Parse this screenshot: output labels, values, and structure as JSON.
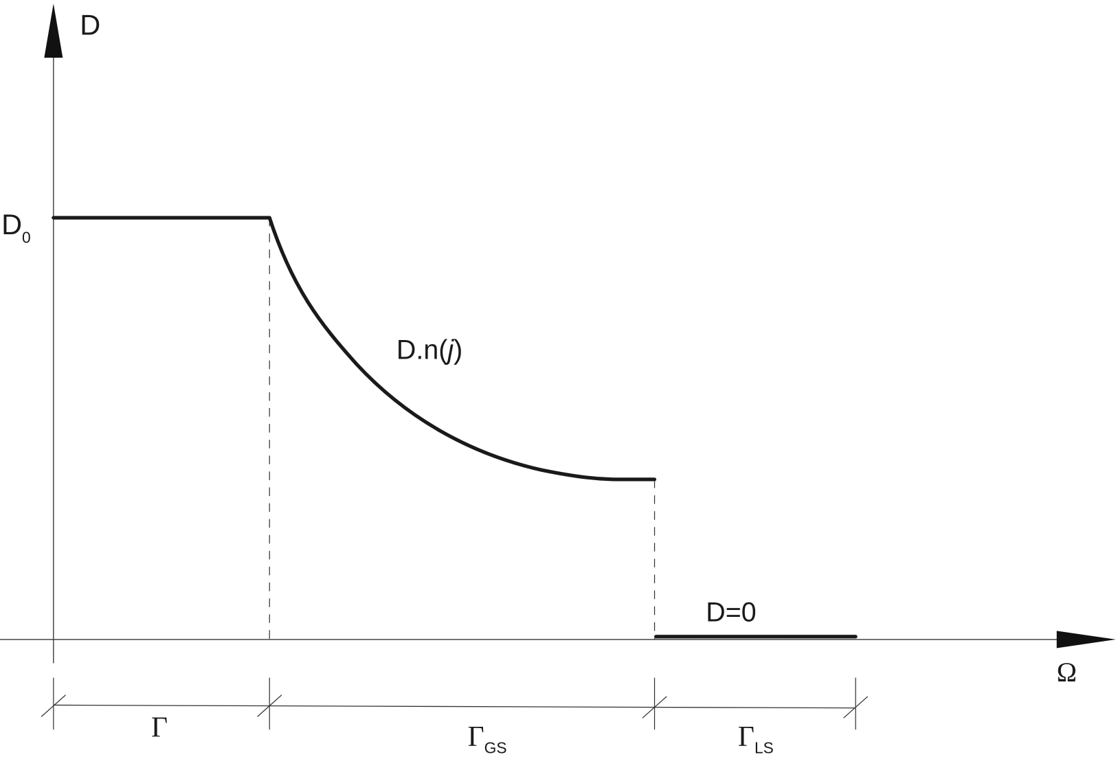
{
  "axes": {
    "y_label": "D",
    "x_label": "Ω"
  },
  "levels": {
    "initial": {
      "main": "D",
      "sub": "0"
    },
    "zero": "D=0"
  },
  "curve_label": {
    "prefix": "D.n(",
    "italic": "j",
    "suffix": ")"
  },
  "regions": [
    {
      "symbol": "Γ"
    },
    {
      "symbol": "Γ",
      "sub": "GS"
    },
    {
      "symbol": "Γ",
      "sub": "LS"
    }
  ]
}
